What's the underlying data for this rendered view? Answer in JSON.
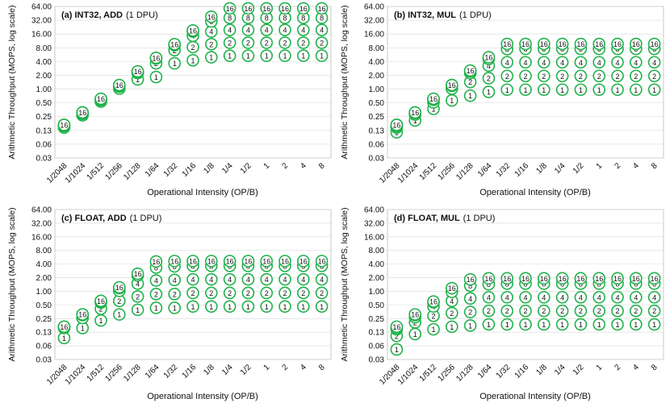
{
  "figure": {
    "marker_color": "#1fb24a",
    "text_color": "#111111",
    "series_names": [
      "1",
      "2",
      "4",
      "8",
      "16"
    ]
  },
  "chart_data": [
    {
      "type": "scatter",
      "panel_label": "(a) INT32, ADD",
      "panel_sub": "(1 DPU)",
      "xlabel": "Operational Intensity (OP/B)",
      "ylabel": "Arithmetic Throughput (MOPS, log scale)",
      "x_categories": [
        "1/2048",
        "1/1024",
        "1/512",
        "1/256",
        "1/128",
        "1/64",
        "1/32",
        "1/16",
        "1/8",
        "1/4",
        "1/2",
        "1",
        "2",
        "4",
        "8"
      ],
      "yticks": [
        "0.03",
        "0.06",
        "0.13",
        "0.25",
        "0.50",
        "1.00",
        "2.00",
        "4.00",
        "8.00",
        "16.00",
        "32.00",
        "64.00"
      ],
      "ylim": [
        0.03,
        64
      ],
      "series": [
        {
          "name": "1",
          "values": [
            0.14,
            0.26,
            0.52,
            1.0,
            1.6,
            1.8,
            3.6,
            4.2,
            4.9,
            5.3,
            5.3,
            5.3,
            5.3,
            5.3,
            5.3
          ]
        },
        {
          "name": "2",
          "values": [
            0.15,
            0.28,
            0.56,
            1.1,
            2.2,
            3.6,
            7.0,
            8.2,
            9.5,
            10.2,
            10.2,
            10.2,
            10.2,
            10.2,
            10.2
          ]
        },
        {
          "name": "4",
          "values": [
            0.155,
            0.29,
            0.58,
            1.15,
            2.3,
            4.6,
            9.0,
            14.5,
            18.0,
            19.5,
            19.5,
            19.5,
            19.5,
            19.5,
            19.5
          ]
        },
        {
          "name": "8",
          "values": [
            0.16,
            0.3,
            0.59,
            1.18,
            2.35,
            4.7,
            9.3,
            18.0,
            30.0,
            36.0,
            36.0,
            36.0,
            36.0,
            36.0,
            36.0
          ]
        },
        {
          "name": "16",
          "values": [
            0.16,
            0.3,
            0.6,
            1.2,
            2.4,
            4.75,
            9.5,
            19.0,
            38.0,
            58.0,
            58.0,
            58.0,
            58.0,
            58.0,
            58.0
          ]
        }
      ]
    },
    {
      "type": "scatter",
      "panel_label": "(b) INT32, MUL",
      "panel_sub": "(1 DPU)",
      "xlabel": "Operational Intensity (OP/B)",
      "ylabel": "Arithmetic Throughput (MOPS, log scale)",
      "x_categories": [
        "1/2048",
        "1/1024",
        "1/512",
        "1/256",
        "1/128",
        "1/64",
        "1/32",
        "1/16",
        "1/8",
        "1/4",
        "1/2",
        "1",
        "2",
        "4",
        "8"
      ],
      "yticks": [
        "0.03",
        "0.06",
        "0.13",
        "0.25",
        "0.50",
        "1.00",
        "2.00",
        "4.00",
        "8.00",
        "16.00",
        "32.00",
        "64.00"
      ],
      "ylim": [
        0.03,
        64
      ],
      "series": [
        {
          "name": "1",
          "values": [
            0.11,
            0.2,
            0.36,
            0.55,
            0.7,
            0.85,
            0.95,
            0.95,
            0.95,
            0.95,
            0.95,
            0.95,
            0.95,
            0.95,
            0.95
          ]
        },
        {
          "name": "2",
          "values": [
            0.14,
            0.27,
            0.5,
            1.0,
            1.4,
            1.7,
            1.9,
            1.9,
            1.9,
            1.9,
            1.9,
            1.9,
            1.9,
            1.9,
            1.9
          ]
        },
        {
          "name": "4",
          "values": [
            0.15,
            0.29,
            0.57,
            1.15,
            2.2,
            3.2,
            3.8,
            3.8,
            3.8,
            3.8,
            3.8,
            3.8,
            3.8,
            3.8,
            3.8
          ]
        },
        {
          "name": "8",
          "values": [
            0.16,
            0.3,
            0.59,
            1.2,
            2.4,
            4.5,
            7.4,
            7.5,
            7.5,
            7.5,
            7.5,
            7.5,
            7.5,
            7.5,
            7.5
          ]
        },
        {
          "name": "16",
          "values": [
            0.16,
            0.3,
            0.6,
            1.2,
            2.5,
            4.9,
            9.6,
            9.6,
            9.6,
            9.6,
            9.6,
            9.6,
            9.6,
            9.6,
            9.6
          ]
        }
      ]
    },
    {
      "type": "scatter",
      "panel_label": "(c) FLOAT, ADD",
      "panel_sub": "(1 DPU)",
      "xlabel": "Operational Intensity (OP/B)",
      "ylabel": "Arithmetic Throughput (MOPS, log scale)",
      "x_categories": [
        "1/2048",
        "1/1024",
        "1/512",
        "1/256",
        "1/128",
        "1/64",
        "1/32",
        "1/16",
        "1/8",
        "1/4",
        "1/2",
        "1",
        "2",
        "4",
        "8"
      ],
      "yticks": [
        "0.03",
        "0.06",
        "0.13",
        "0.25",
        "0.50",
        "1.00",
        "2.00",
        "4.00",
        "8.00",
        "16.00",
        "32.00",
        "64.00"
      ],
      "ylim": [
        0.03,
        64
      ],
      "series": [
        {
          "name": "1",
          "values": [
            0.09,
            0.15,
            0.22,
            0.3,
            0.38,
            0.42,
            0.42,
            0.45,
            0.45,
            0.45,
            0.45,
            0.45,
            0.45,
            0.45,
            0.45
          ]
        },
        {
          "name": "2",
          "values": [
            0.15,
            0.25,
            0.4,
            0.6,
            0.75,
            0.85,
            0.85,
            0.9,
            0.9,
            0.9,
            0.9,
            0.9,
            0.9,
            0.9,
            0.9
          ]
        },
        {
          "name": "4",
          "values": [
            0.16,
            0.29,
            0.55,
            1.0,
            1.45,
            1.7,
            1.75,
            1.8,
            1.8,
            1.8,
            1.8,
            1.8,
            1.8,
            1.8,
            1.8
          ]
        },
        {
          "name": "8",
          "values": [
            0.16,
            0.3,
            0.58,
            1.15,
            2.2,
            3.3,
            3.5,
            3.6,
            3.6,
            3.6,
            3.6,
            3.6,
            3.6,
            3.6,
            3.6
          ]
        },
        {
          "name": "16",
          "values": [
            0.16,
            0.3,
            0.6,
            1.2,
            2.4,
            4.5,
            4.6,
            4.6,
            4.6,
            4.6,
            4.6,
            4.6,
            4.6,
            4.6,
            4.6
          ]
        }
      ]
    },
    {
      "type": "scatter",
      "panel_label": "(d) FLOAT, MUL",
      "panel_sub": "(1 DPU)",
      "xlabel": "Operational Intensity (OP/B)",
      "ylabel": "Arithmetic Throughput (MOPS, log scale)",
      "x_categories": [
        "1/2048",
        "1/1024",
        "1/512",
        "1/256",
        "1/128",
        "1/64",
        "1/32",
        "1/16",
        "1/8",
        "1/4",
        "1/2",
        "1",
        "2",
        "4",
        "8"
      ],
      "yticks": [
        "0.03",
        "0.06",
        "0.13",
        "0.25",
        "0.50",
        "1.00",
        "2.00",
        "4.00",
        "8.00",
        "16.00",
        "32.00",
        "64.00"
      ],
      "ylim": [
        0.03,
        64
      ],
      "series": [
        {
          "name": "1",
          "values": [
            0.05,
            0.11,
            0.14,
            0.16,
            0.17,
            0.18,
            0.18,
            0.18,
            0.18,
            0.18,
            0.18,
            0.18,
            0.18,
            0.18,
            0.18
          ]
        },
        {
          "name": "2",
          "values": [
            0.1,
            0.2,
            0.28,
            0.32,
            0.34,
            0.36,
            0.36,
            0.36,
            0.36,
            0.36,
            0.36,
            0.36,
            0.36,
            0.36,
            0.36
          ]
        },
        {
          "name": "4",
          "values": [
            0.14,
            0.26,
            0.45,
            0.6,
            0.68,
            0.72,
            0.72,
            0.72,
            0.72,
            0.72,
            0.72,
            0.72,
            0.72,
            0.72,
            0.72
          ]
        },
        {
          "name": "8",
          "values": [
            0.15,
            0.29,
            0.56,
            0.95,
            1.3,
            1.4,
            1.45,
            1.45,
            1.45,
            1.45,
            1.45,
            1.45,
            1.45,
            1.45,
            1.45
          ]
        },
        {
          "name": "16",
          "values": [
            0.16,
            0.3,
            0.58,
            1.15,
            1.8,
            1.9,
            1.9,
            1.9,
            1.9,
            1.9,
            1.9,
            1.9,
            1.9,
            1.9,
            1.9
          ]
        }
      ]
    }
  ]
}
